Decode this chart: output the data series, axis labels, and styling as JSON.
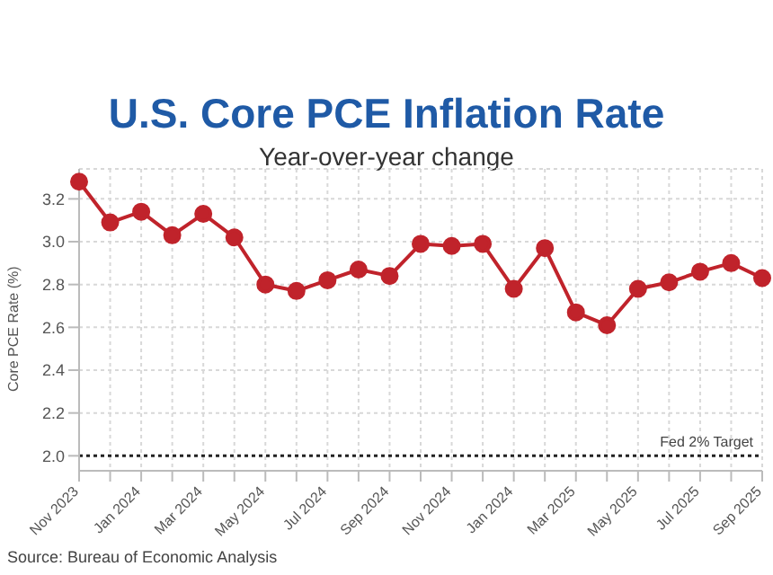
{
  "chart_data": {
    "type": "line",
    "title": "U.S. Core PCE Inflation Rate",
    "subtitle": "Year-over-year change",
    "ylabel": "Core PCE Rate (%)",
    "categories": [
      "Nov 2023",
      null,
      "Jan 2024",
      null,
      "Mar 2024",
      null,
      "May 2024",
      null,
      "Jul 2024",
      null,
      "Sep 2024",
      null,
      "Nov 2024",
      null,
      "Jan 2024",
      null,
      "Mar 2025",
      null,
      "May 2025",
      null,
      "Jul 2025",
      null,
      "Sep 2025"
    ],
    "series": [
      {
        "color": "#c0232b",
        "values": [
          3.28,
          3.09,
          3.14,
          3.03,
          3.13,
          3.02,
          2.8,
          2.77,
          2.82,
          2.87,
          2.84,
          2.99,
          2.98,
          2.99,
          2.78,
          2.97,
          2.67,
          2.61,
          2.78,
          2.81,
          2.86,
          2.9,
          2.83
        ]
      }
    ],
    "ylim": [
      1.93,
      3.34
    ],
    "yticks": [
      {
        "value": 2,
        "label": "2.0"
      },
      2.2,
      2.4,
      2.6,
      2.8,
      {
        "value": 3,
        "label": "3.0"
      },
      3.2
    ],
    "grid": true,
    "marker": "circle",
    "line_style": "solid",
    "legend": false,
    "ref_lines": [
      {
        "axis": "y",
        "value": 2.0,
        "label": "Fed 2% Target",
        "color": "#222222",
        "line_style": "dotted"
      }
    ],
    "annotations": [
      "Source: Bureau of Economic Analysis"
    ]
  }
}
